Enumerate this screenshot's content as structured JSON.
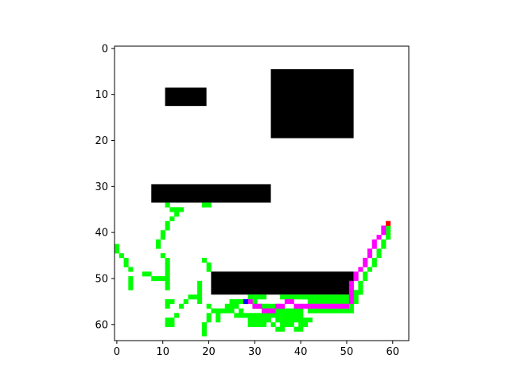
{
  "chart_data": {
    "type": "heatmap",
    "title": "",
    "xlabel": "",
    "ylabel": "",
    "grid": false,
    "grid_size": [
      64,
      64
    ],
    "xlim": [
      -0.5,
      63.5
    ],
    "ylim": [
      63.5,
      -0.5
    ],
    "x_ticks": [
      0,
      10,
      20,
      30,
      40,
      50,
      60
    ],
    "y_ticks": [
      0,
      10,
      20,
      30,
      40,
      50,
      60
    ],
    "colors": {
      "free": "#ffffff",
      "obstacle": "#000000",
      "explored": "#00ff00",
      "path": "#ff00ff",
      "start": "#0000ff",
      "goal": "#ff0000"
    },
    "obstacles": [
      {
        "x0": 11,
        "x1": 19,
        "y0": 9,
        "y1": 12
      },
      {
        "x0": 34,
        "x1": 51,
        "y0": 5,
        "y1": 19
      },
      {
        "x0": 8,
        "x1": 33,
        "y0": 30,
        "y1": 33
      },
      {
        "x0": 21,
        "x1": 51,
        "y0": 49,
        "y1": 53
      }
    ],
    "explored_cells": [
      [
        11,
        34
      ],
      [
        19,
        34
      ],
      [
        20,
        34
      ],
      [
        12,
        35
      ],
      [
        13,
        35
      ],
      [
        14,
        35
      ],
      [
        13,
        36
      ],
      [
        12,
        37
      ],
      [
        11,
        38
      ],
      [
        11,
        39
      ],
      [
        10,
        40
      ],
      [
        10,
        41
      ],
      [
        9,
        42
      ],
      [
        0,
        43
      ],
      [
        9,
        43
      ],
      [
        0,
        44
      ],
      [
        1,
        45
      ],
      [
        10,
        45
      ],
      [
        2,
        46
      ],
      [
        11,
        46
      ],
      [
        19,
        46
      ],
      [
        2,
        47
      ],
      [
        11,
        47
      ],
      [
        20,
        47
      ],
      [
        3,
        48
      ],
      [
        11,
        48
      ],
      [
        20,
        48
      ],
      [
        6,
        49
      ],
      [
        7,
        49
      ],
      [
        11,
        49
      ],
      [
        3,
        50
      ],
      [
        8,
        50
      ],
      [
        9,
        50
      ],
      [
        10,
        50
      ],
      [
        11,
        50
      ],
      [
        3,
        51
      ],
      [
        11,
        51
      ],
      [
        18,
        51
      ],
      [
        3,
        52
      ],
      [
        11,
        52
      ],
      [
        18,
        52
      ],
      [
        18,
        53
      ],
      [
        16,
        54
      ],
      [
        17,
        54
      ],
      [
        18,
        54
      ],
      [
        11,
        55
      ],
      [
        12,
        55
      ],
      [
        15,
        55
      ],
      [
        18,
        55
      ],
      [
        25,
        55
      ],
      [
        26,
        55
      ],
      [
        27,
        55
      ],
      [
        28,
        55
      ],
      [
        29,
        55
      ],
      [
        30,
        55
      ],
      [
        11,
        56
      ],
      [
        14,
        56
      ],
      [
        20,
        56
      ],
      [
        24,
        56
      ],
      [
        25,
        56
      ],
      [
        26,
        56
      ],
      [
        31,
        56
      ],
      [
        32,
        56
      ],
      [
        33,
        56
      ],
      [
        34,
        56
      ],
      [
        21,
        57
      ],
      [
        22,
        57
      ],
      [
        23,
        57
      ],
      [
        24,
        57
      ],
      [
        25,
        57
      ],
      [
        27,
        57
      ],
      [
        32,
        57
      ],
      [
        33,
        57
      ],
      [
        35,
        57
      ],
      [
        36,
        57
      ],
      [
        37,
        57
      ],
      [
        38,
        57
      ],
      [
        39,
        57
      ],
      [
        40,
        57
      ],
      [
        13,
        58
      ],
      [
        20,
        58
      ],
      [
        22,
        58
      ],
      [
        26,
        58
      ],
      [
        27,
        58
      ],
      [
        28,
        58
      ],
      [
        29,
        58
      ],
      [
        30,
        58
      ],
      [
        31,
        58
      ],
      [
        32,
        58
      ],
      [
        33,
        58
      ],
      [
        34,
        58
      ],
      [
        35,
        58
      ],
      [
        36,
        58
      ],
      [
        37,
        58
      ],
      [
        38,
        58
      ],
      [
        39,
        58
      ],
      [
        40,
        58
      ],
      [
        11,
        59
      ],
      [
        12,
        59
      ],
      [
        20,
        59
      ],
      [
        22,
        59
      ],
      [
        29,
        59
      ],
      [
        30,
        59
      ],
      [
        31,
        59
      ],
      [
        32,
        59
      ],
      [
        33,
        59
      ],
      [
        35,
        59
      ],
      [
        36,
        59
      ],
      [
        37,
        59
      ],
      [
        38,
        59
      ],
      [
        39,
        59
      ],
      [
        40,
        59
      ],
      [
        41,
        59
      ],
      [
        42,
        59
      ],
      [
        11,
        60
      ],
      [
        12,
        60
      ],
      [
        19,
        60
      ],
      [
        29,
        60
      ],
      [
        30,
        60
      ],
      [
        31,
        60
      ],
      [
        32,
        60
      ],
      [
        34,
        60
      ],
      [
        36,
        60
      ],
      [
        37,
        60
      ],
      [
        38,
        60
      ],
      [
        40,
        60
      ],
      [
        41,
        60
      ],
      [
        19,
        61
      ],
      [
        35,
        61
      ],
      [
        36,
        61
      ],
      [
        39,
        61
      ],
      [
        40,
        61
      ],
      [
        19,
        62
      ],
      [
        29,
        54
      ],
      [
        30,
        54
      ],
      [
        31,
        54
      ],
      [
        32,
        54
      ],
      [
        36,
        54
      ],
      [
        37,
        54
      ],
      [
        38,
        54
      ],
      [
        39,
        54
      ],
      [
        40,
        54
      ],
      [
        41,
        54
      ],
      [
        42,
        54
      ],
      [
        43,
        54
      ],
      [
        44,
        54
      ],
      [
        45,
        54
      ],
      [
        46,
        54
      ],
      [
        47,
        54
      ],
      [
        48,
        54
      ],
      [
        49,
        54
      ],
      [
        50,
        54
      ],
      [
        51,
        54
      ],
      [
        52,
        54
      ],
      [
        42,
        55
      ],
      [
        43,
        55
      ],
      [
        44,
        55
      ],
      [
        45,
        55
      ],
      [
        46,
        55
      ],
      [
        47,
        55
      ],
      [
        48,
        55
      ],
      [
        49,
        55
      ],
      [
        50,
        55
      ],
      [
        51,
        55
      ],
      [
        52,
        55
      ],
      [
        30,
        56
      ],
      [
        35,
        56
      ],
      [
        50,
        56
      ],
      [
        51,
        56
      ],
      [
        42,
        57
      ],
      [
        43,
        57
      ],
      [
        44,
        57
      ],
      [
        45,
        57
      ],
      [
        46,
        57
      ],
      [
        47,
        57
      ],
      [
        48,
        57
      ],
      [
        49,
        57
      ],
      [
        50,
        57
      ],
      [
        51,
        57
      ],
      [
        52,
        53
      ],
      [
        53,
        53
      ],
      [
        53,
        52
      ],
      [
        53,
        51
      ],
      [
        54,
        50
      ],
      [
        54,
        49
      ],
      [
        55,
        48
      ],
      [
        56,
        47
      ],
      [
        56,
        46
      ],
      [
        57,
        45
      ],
      [
        57,
        44
      ],
      [
        58,
        43
      ],
      [
        58,
        42
      ],
      [
        59,
        41
      ],
      [
        59,
        40
      ],
      [
        59,
        39
      ]
    ],
    "path_cells": [
      [
        29,
        55
      ],
      [
        30,
        56
      ],
      [
        31,
        56
      ],
      [
        32,
        57
      ],
      [
        33,
        57
      ],
      [
        34,
        57
      ],
      [
        35,
        56
      ],
      [
        36,
        56
      ],
      [
        37,
        55
      ],
      [
        38,
        55
      ],
      [
        39,
        56
      ],
      [
        40,
        56
      ],
      [
        41,
        56
      ],
      [
        42,
        56
      ],
      [
        43,
        56
      ],
      [
        44,
        56
      ],
      [
        45,
        56
      ],
      [
        46,
        56
      ],
      [
        47,
        56
      ],
      [
        48,
        56
      ],
      [
        49,
        56
      ],
      [
        50,
        56
      ],
      [
        51,
        55
      ],
      [
        51,
        54
      ],
      [
        51,
        53
      ],
      [
        51,
        52
      ],
      [
        51,
        51
      ],
      [
        52,
        50
      ],
      [
        52,
        49
      ],
      [
        53,
        48
      ],
      [
        54,
        47
      ],
      [
        54,
        46
      ],
      [
        55,
        45
      ],
      [
        55,
        44
      ],
      [
        56,
        43
      ],
      [
        56,
        42
      ],
      [
        57,
        41
      ],
      [
        58,
        40
      ],
      [
        58,
        39
      ]
    ],
    "start_cell": [
      28,
      55
    ],
    "goal_cell": [
      59,
      38
    ]
  }
}
